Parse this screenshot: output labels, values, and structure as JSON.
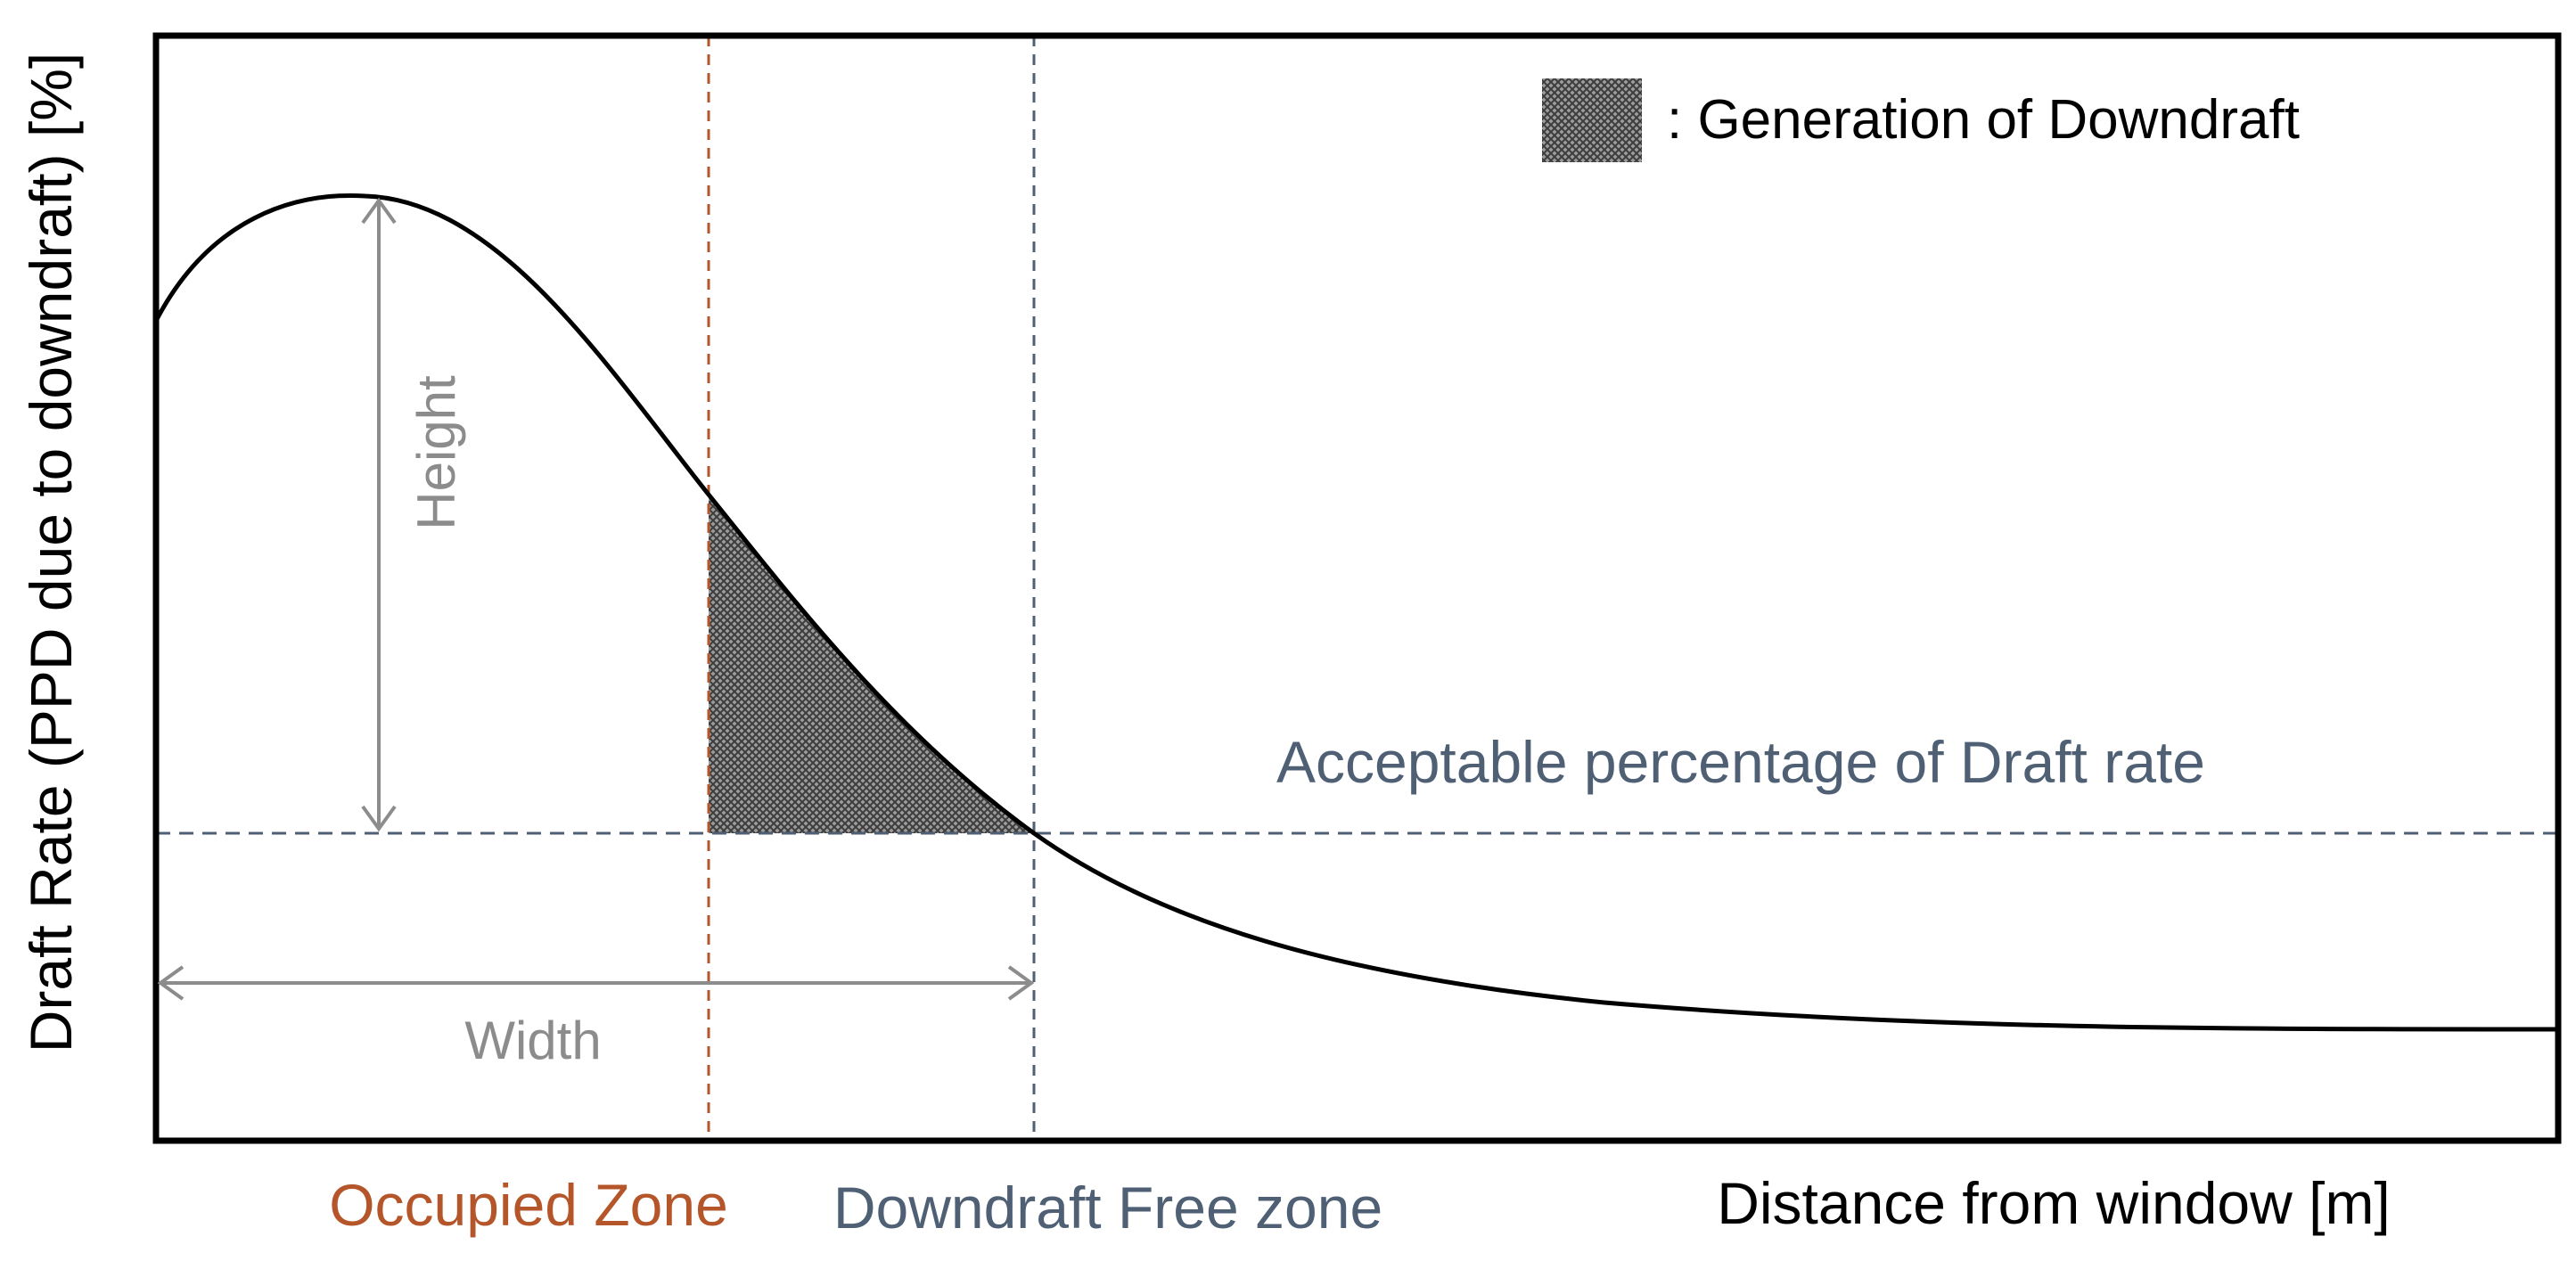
{
  "title": "",
  "ylabel": "Draft Rate (PPD due to downdraft) [%]",
  "xlabel": "Distance from window [m]",
  "legend": {
    "label": ": Generation of Downdraft",
    "swatch_color": "#555555"
  },
  "zones": {
    "occupied": {
      "label": "Occupied Zone",
      "color": "#b5562a"
    },
    "free": {
      "label": "Downdraft Free zone",
      "color": "#4f6075"
    }
  },
  "threshold": {
    "label": "Acceptable percentage of Draft rate",
    "color": "#4f6075"
  },
  "dimensions": {
    "height_label": "Height",
    "width_label": "Width",
    "color": "#8c8c8c"
  },
  "colors": {
    "curve": "#000000",
    "frame": "#000000",
    "shade": "#555555"
  }
}
